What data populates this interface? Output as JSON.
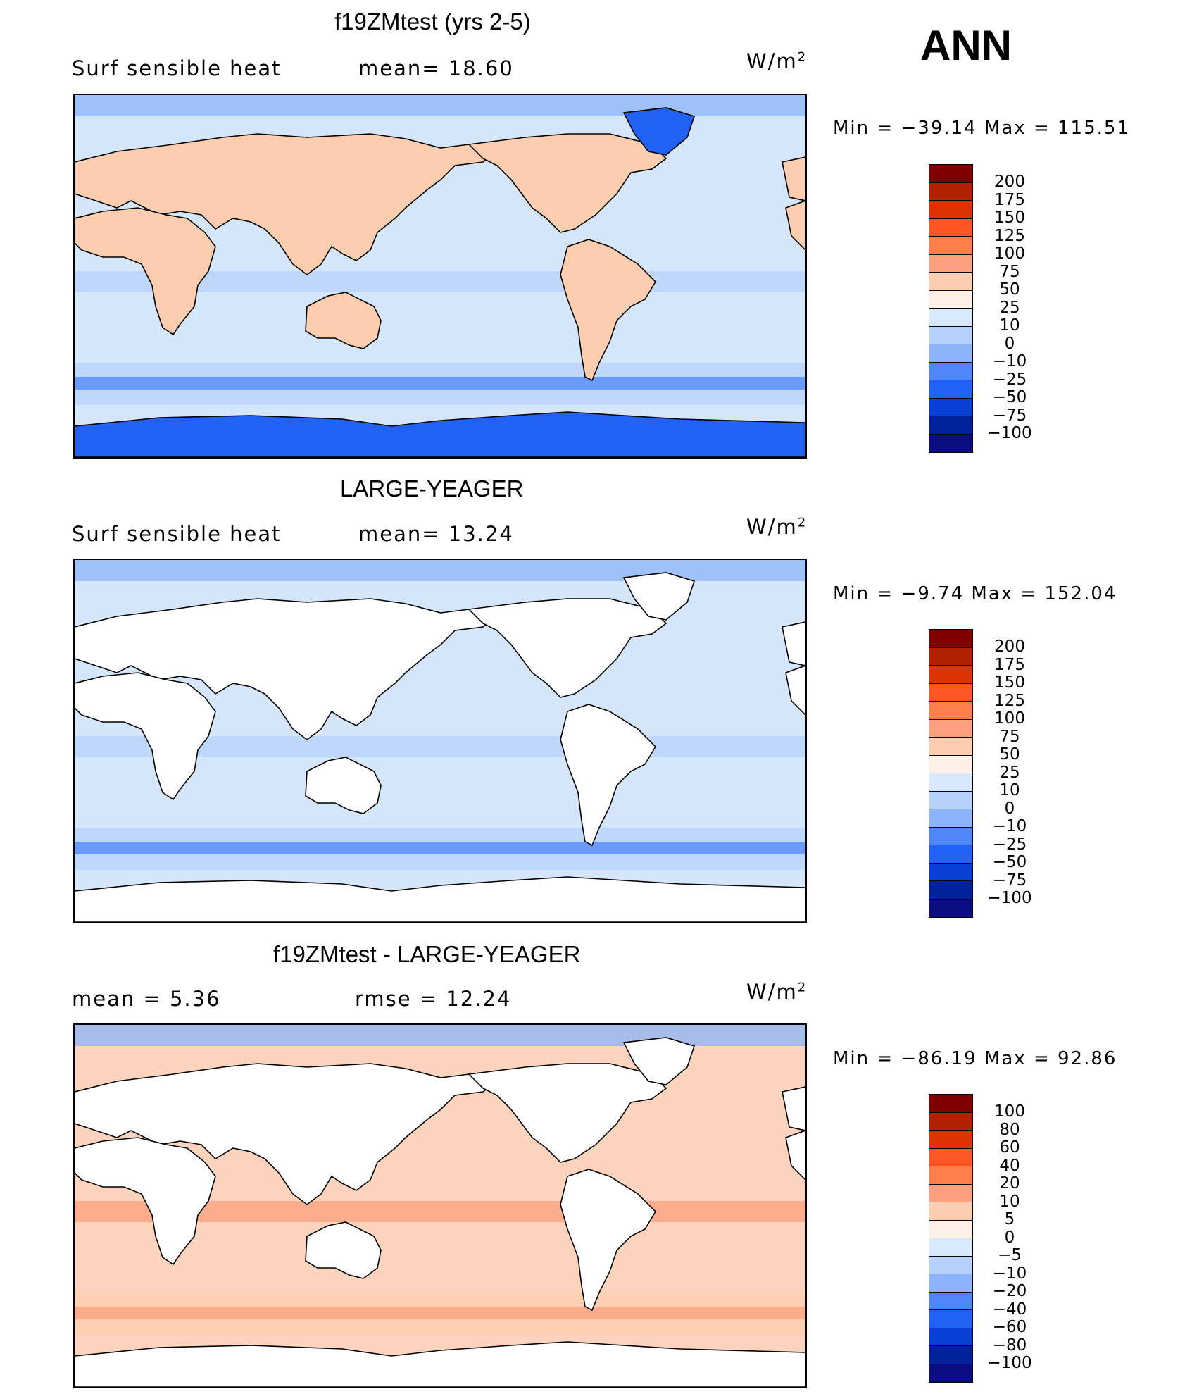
{
  "season": "ANN",
  "units_base": "W/m",
  "units_exp": "2",
  "panels": [
    {
      "title": "f19ZMtest (yrs 2-5)",
      "left_label": "Surf  sensible  heat",
      "mid_label": "mean=   18.60",
      "minmax": "Min  =  −39.14  Max  =  115.51",
      "ocean_color": "#d6e6fa",
      "land_style": "filled",
      "levels": [
        "200",
        "175",
        "150",
        "125",
        "100",
        "75",
        "50",
        "25",
        "10",
        "0",
        "−10",
        "−25",
        "−50",
        "−75",
        "−100"
      ]
    },
    {
      "title": "LARGE-YEAGER",
      "left_label": "Surf  sensible  heat",
      "mid_label": "mean=   13.24",
      "minmax": "Min  =   −9.74  Max  =  152.04",
      "ocean_color": "#d6e6fa",
      "land_style": "blank",
      "levels": [
        "200",
        "175",
        "150",
        "125",
        "100",
        "75",
        "50",
        "25",
        "10",
        "0",
        "−10",
        "−25",
        "−50",
        "−75",
        "−100"
      ]
    },
    {
      "title": "f19ZMtest - LARGE-YEAGER",
      "left_label": "mean  =      5.36",
      "mid_label": "rmse  =      12.24",
      "minmax": "Min  =  −86.19  Max  =    92.86",
      "ocean_color": "#fcd3bd",
      "land_style": "blank",
      "levels": [
        "100",
        "80",
        "60",
        "40",
        "20",
        "10",
        "5",
        "0",
        "−5",
        "−10",
        "−20",
        "−40",
        "−60",
        "−80",
        "−100"
      ]
    }
  ],
  "colorbar_colors": [
    "#800000",
    "#b22200",
    "#dd3300",
    "#ff5522",
    "#ff7f4a",
    "#fca07e",
    "#fdcdb0",
    "#fff0e6",
    "#d9e9fc",
    "#b7d2fa",
    "#8cb4fa",
    "#4d87f7",
    "#2162f5",
    "#0a3fd6",
    "#00239c",
    "#0b0d80"
  ]
}
